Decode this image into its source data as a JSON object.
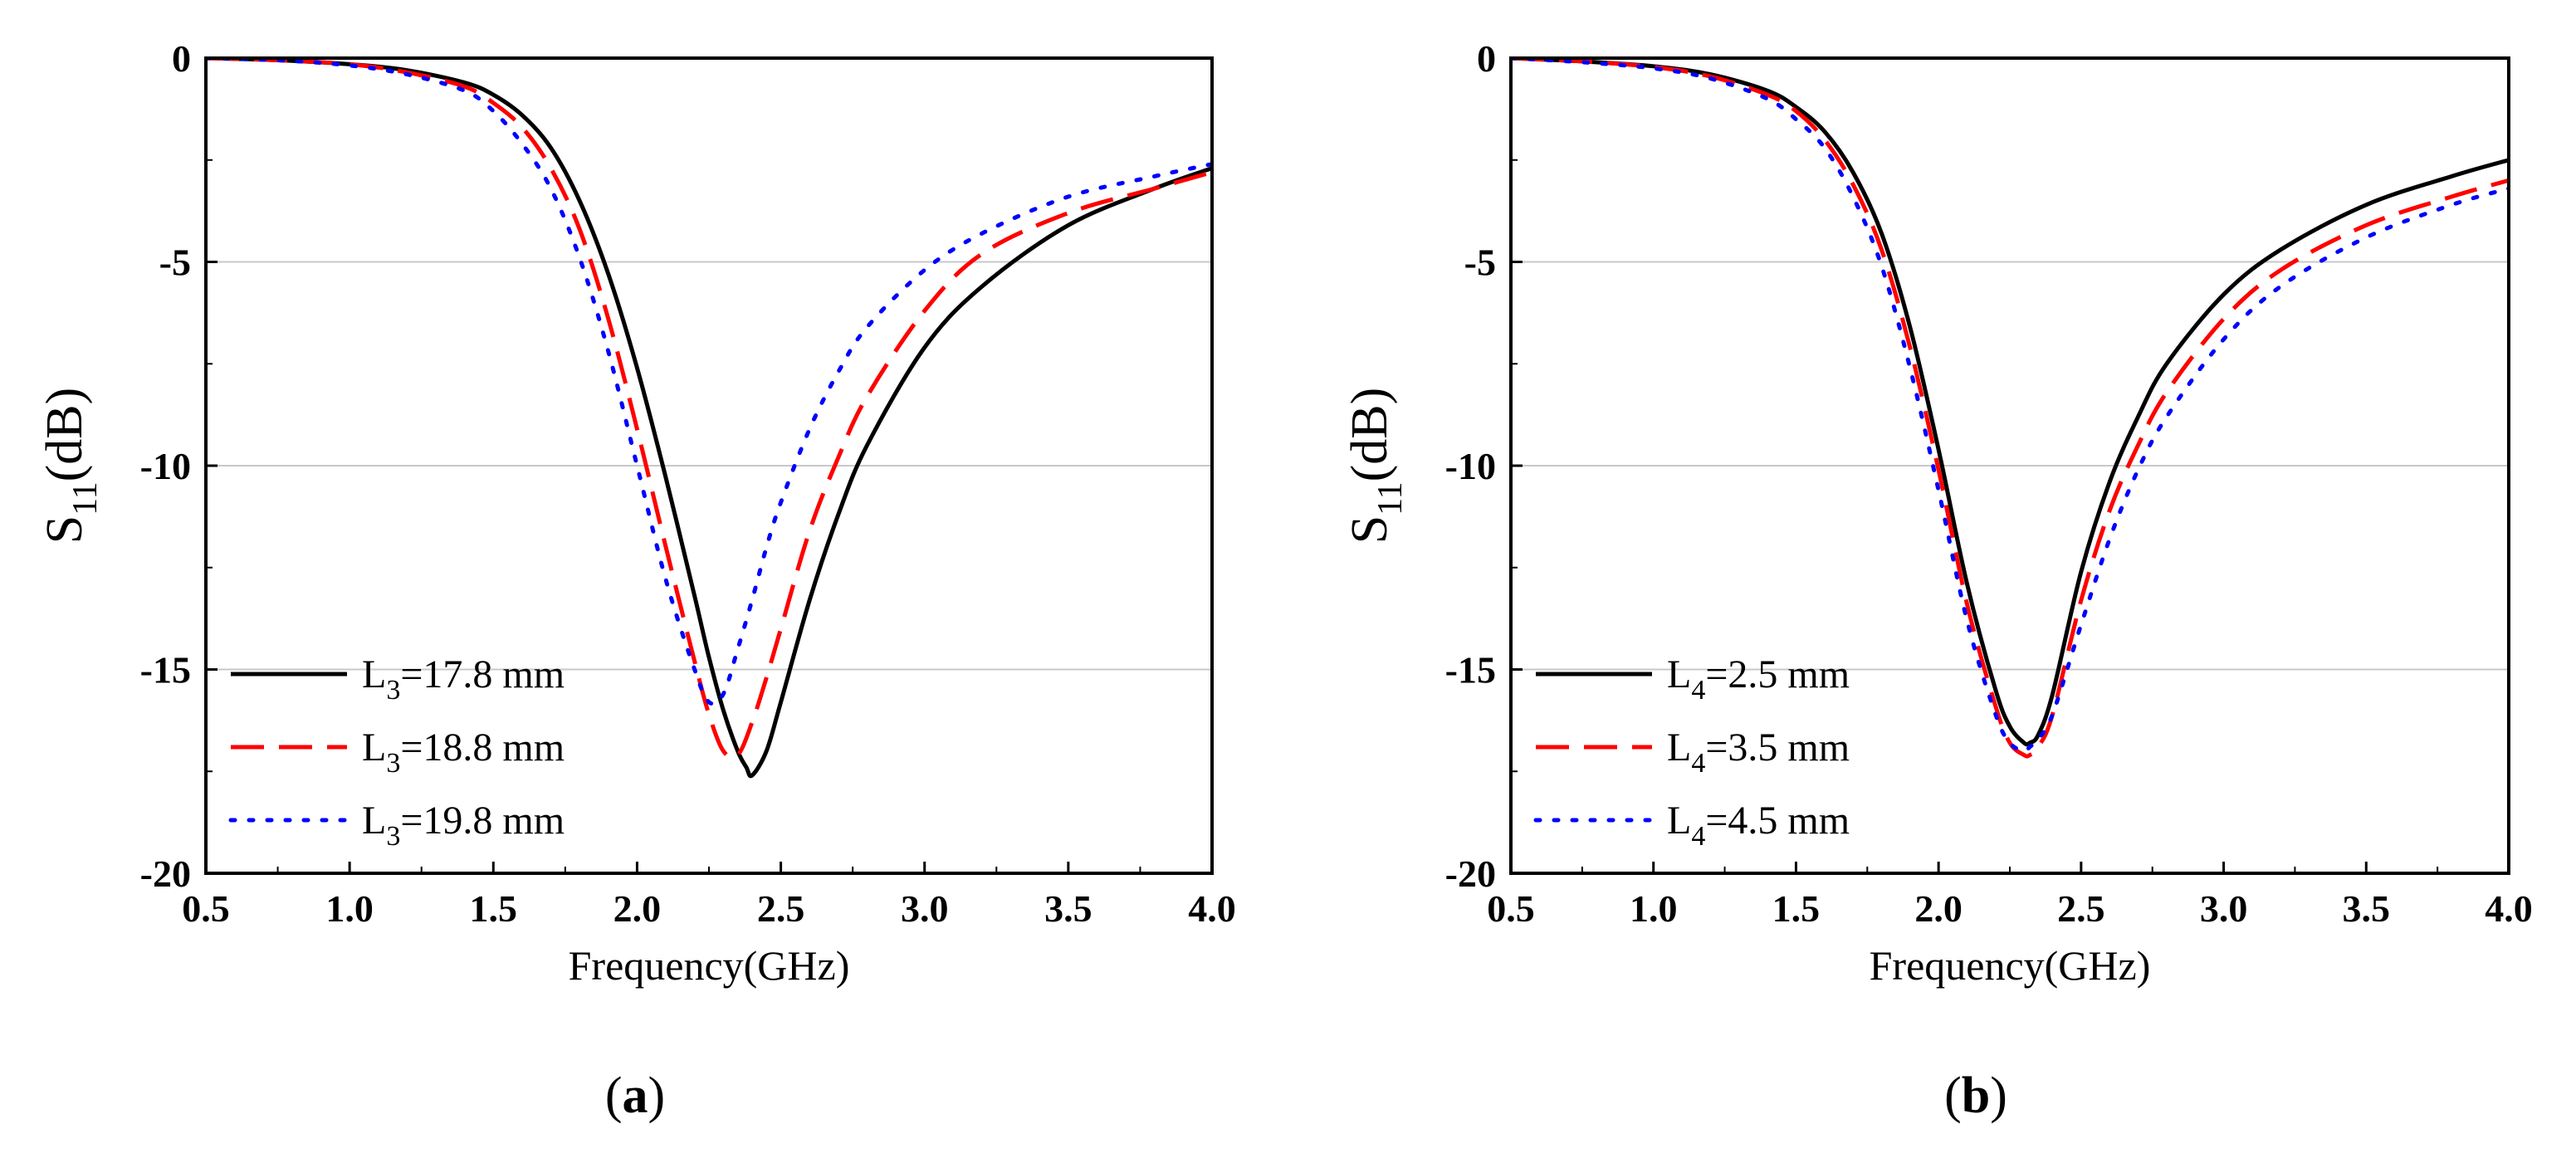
{
  "chart_data": [
    {
      "type": "line",
      "panel_label": "a",
      "xlabel": "Frequency(GHz)",
      "ylabel_main": "S",
      "ylabel_sub": "11",
      "ylabel_unit": "(dB)",
      "xlim": [
        0.5,
        4.0
      ],
      "ylim": [
        -20,
        0
      ],
      "xticks": [
        "0.5",
        "1.0",
        "1.5",
        "2.0",
        "2.5",
        "3.0",
        "3.5",
        "4.0"
      ],
      "yticks": [
        "0",
        "-5",
        "-10",
        "-15",
        "-20"
      ],
      "grid": "horizontal",
      "legend_position": "bottom-left",
      "series": [
        {
          "name_main": "L",
          "name_sub": "3",
          "name_rest": "=17.8 mm",
          "color": "#000000",
          "dash": "solid",
          "x": [
            0.5,
            0.75,
            1.0,
            1.2,
            1.4,
            1.5,
            1.6,
            1.7,
            1.8,
            1.9,
            2.0,
            2.1,
            2.2,
            2.25,
            2.3,
            2.35,
            2.38,
            2.4,
            2.45,
            2.5,
            2.6,
            2.7,
            2.8,
            3.0,
            3.2,
            3.5,
            3.8,
            4.0
          ],
          "y": [
            0,
            -0.05,
            -0.15,
            -0.3,
            -0.6,
            -0.9,
            -1.4,
            -2.2,
            -3.5,
            -5.3,
            -7.6,
            -10.3,
            -13.2,
            -14.7,
            -16.0,
            -17.0,
            -17.4,
            -17.6,
            -17.0,
            -15.8,
            -13.3,
            -11.2,
            -9.5,
            -7.1,
            -5.6,
            -4.1,
            -3.2,
            -2.7
          ]
        },
        {
          "name_main": "L",
          "name_sub": "3",
          "name_rest": "=18.8 mm",
          "color": "#ff0000",
          "dash": "dashed",
          "x": [
            0.5,
            0.75,
            1.0,
            1.2,
            1.4,
            1.5,
            1.6,
            1.7,
            1.8,
            1.9,
            2.0,
            2.1,
            2.2,
            2.25,
            2.3,
            2.35,
            2.4,
            2.45,
            2.5,
            2.6,
            2.7,
            2.8,
            3.0,
            3.2,
            3.5,
            3.8,
            4.0
          ],
          "y": [
            0,
            -0.05,
            -0.15,
            -0.35,
            -0.7,
            -1.1,
            -1.7,
            -2.7,
            -4.2,
            -6.4,
            -9.1,
            -12.0,
            -14.8,
            -16.1,
            -17.0,
            -17.1,
            -16.3,
            -15.2,
            -14.0,
            -11.6,
            -9.8,
            -8.3,
            -6.2,
            -4.8,
            -3.8,
            -3.2,
            -2.8
          ]
        },
        {
          "name_main": "L",
          "name_sub": "3",
          "name_rest": "=19.8 mm",
          "color": "#0000ff",
          "dash": "dotted",
          "x": [
            0.5,
            0.75,
            1.0,
            1.2,
            1.4,
            1.5,
            1.6,
            1.7,
            1.8,
            1.9,
            2.0,
            2.1,
            2.2,
            2.25,
            2.3,
            2.35,
            2.4,
            2.45,
            2.5,
            2.6,
            2.7,
            2.8,
            3.0,
            3.2,
            3.5,
            3.8,
            4.0
          ],
          "y": [
            0,
            -0.05,
            -0.18,
            -0.4,
            -0.8,
            -1.3,
            -2.1,
            -3.2,
            -4.9,
            -7.2,
            -10.0,
            -12.8,
            -15.0,
            -15.8,
            -15.6,
            -14.5,
            -13.3,
            -12.0,
            -10.9,
            -9.1,
            -7.7,
            -6.6,
            -5.2,
            -4.3,
            -3.4,
            -2.9,
            -2.6
          ]
        }
      ]
    },
    {
      "type": "line",
      "panel_label": "b",
      "xlabel": "Frequency(GHz)",
      "ylabel_main": "S",
      "ylabel_sub": "11",
      "ylabel_unit": "(dB)",
      "xlim": [
        0.5,
        4.0
      ],
      "ylim": [
        -20,
        0
      ],
      "xticks": [
        "0.5",
        "1.0",
        "1.5",
        "2.0",
        "2.5",
        "3.0",
        "3.5",
        "4.0"
      ],
      "yticks": [
        "0",
        "-5",
        "-10",
        "-15",
        "-20"
      ],
      "grid": "horizontal",
      "legend_position": "bottom-left",
      "series": [
        {
          "name_main": "L",
          "name_sub": "4",
          "name_rest": "=2.5 mm",
          "color": "#000000",
          "dash": "solid",
          "x": [
            0.5,
            0.75,
            1.0,
            1.2,
            1.4,
            1.5,
            1.6,
            1.7,
            1.8,
            1.9,
            2.0,
            2.1,
            2.2,
            2.25,
            2.3,
            2.32,
            2.35,
            2.4,
            2.5,
            2.6,
            2.7,
            2.8,
            3.0,
            3.2,
            3.5,
            3.8,
            4.0
          ],
          "y": [
            0,
            -0.08,
            -0.2,
            -0.4,
            -0.8,
            -1.2,
            -1.8,
            -2.8,
            -4.3,
            -6.6,
            -9.6,
            -12.9,
            -15.5,
            -16.4,
            -16.8,
            -16.8,
            -16.6,
            -15.6,
            -12.6,
            -10.4,
            -8.8,
            -7.5,
            -5.8,
            -4.7,
            -3.6,
            -2.9,
            -2.5
          ]
        },
        {
          "name_main": "L",
          "name_sub": "4",
          "name_rest": "=3.5 mm",
          "color": "#ff0000",
          "dash": "dashed",
          "x": [
            0.5,
            0.75,
            1.0,
            1.2,
            1.4,
            1.5,
            1.6,
            1.7,
            1.8,
            1.9,
            2.0,
            2.1,
            2.2,
            2.25,
            2.3,
            2.32,
            2.35,
            2.4,
            2.5,
            2.6,
            2.7,
            2.8,
            3.0,
            3.2,
            3.5,
            3.8,
            4.0
          ],
          "y": [
            0,
            -0.08,
            -0.22,
            -0.45,
            -0.9,
            -1.3,
            -2.0,
            -3.1,
            -4.7,
            -7.1,
            -10.1,
            -13.4,
            -15.9,
            -16.8,
            -17.1,
            -17.1,
            -16.9,
            -16.1,
            -13.3,
            -11.1,
            -9.5,
            -8.2,
            -6.4,
            -5.2,
            -4.1,
            -3.4,
            -3.0
          ]
        },
        {
          "name_main": "L",
          "name_sub": "4",
          "name_rest": "=4.5 mm",
          "color": "#0000ff",
          "dash": "dotted",
          "x": [
            0.5,
            0.75,
            1.0,
            1.2,
            1.4,
            1.5,
            1.6,
            1.7,
            1.8,
            1.9,
            2.0,
            2.1,
            2.2,
            2.25,
            2.3,
            2.32,
            2.35,
            2.4,
            2.5,
            2.6,
            2.7,
            2.8,
            3.0,
            3.2,
            3.5,
            3.8,
            4.0
          ],
          "y": [
            0,
            -0.1,
            -0.25,
            -0.5,
            -1.0,
            -1.5,
            -2.2,
            -3.4,
            -5.1,
            -7.6,
            -10.6,
            -13.8,
            -16.1,
            -16.8,
            -17.0,
            -16.9,
            -16.7,
            -16.1,
            -13.9,
            -11.8,
            -10.1,
            -8.8,
            -6.9,
            -5.6,
            -4.4,
            -3.6,
            -3.2
          ]
        }
      ]
    }
  ]
}
